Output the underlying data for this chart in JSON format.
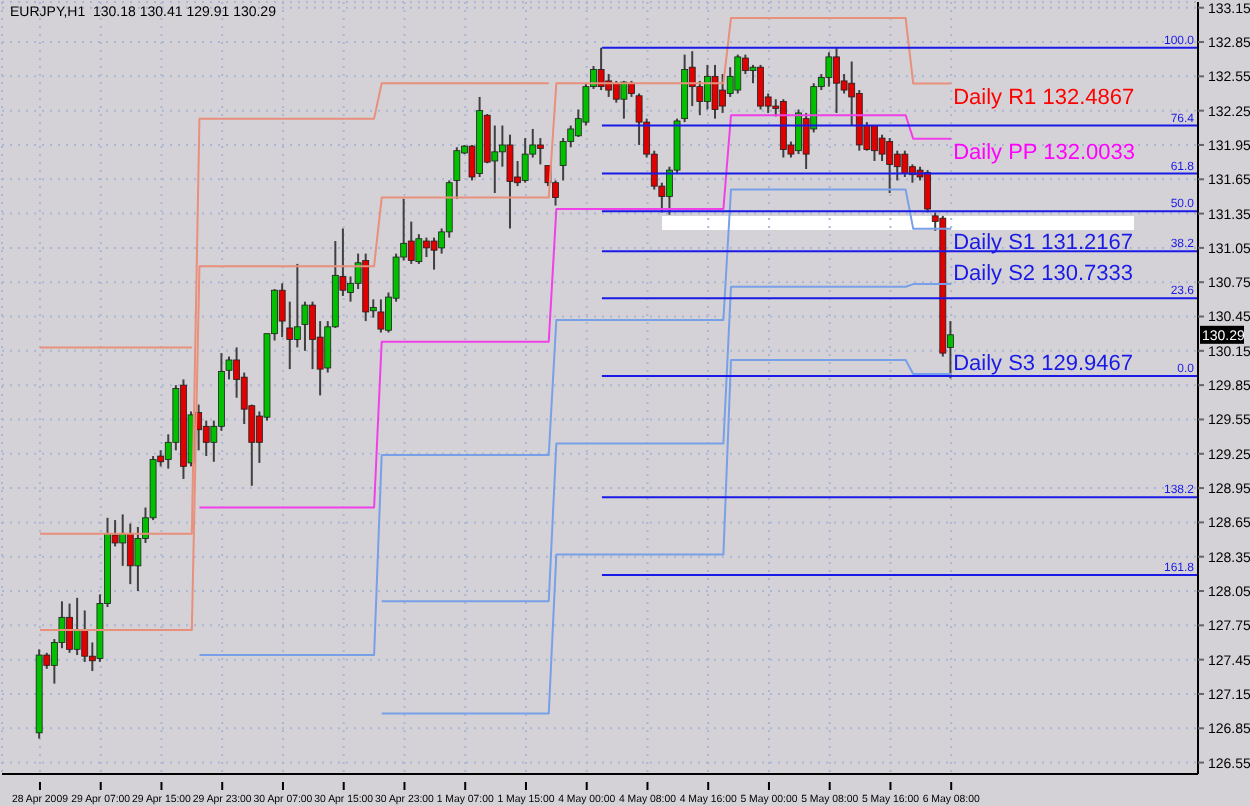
{
  "chart_data": {
    "type": "candlestick",
    "title": "EURJPY,H1  130.18 130.41 129.91 130.29",
    "categories": [
      "28 Apr 2009",
      null,
      null,
      null,
      null,
      null,
      null,
      null,
      "29 Apr 07:00",
      null,
      null,
      null,
      null,
      null,
      null,
      null,
      "29 Apr 15:00",
      null,
      null,
      null,
      null,
      null,
      null,
      null,
      "29 Apr 23:00",
      null,
      null,
      null,
      null,
      null,
      null,
      null,
      "30 Apr 07:00",
      null,
      null,
      null,
      null,
      null,
      null,
      null,
      "30 Apr 15:00",
      null,
      null,
      null,
      null,
      null,
      null,
      null,
      "30 Apr 23:00",
      null,
      null,
      null,
      null,
      null,
      null,
      null,
      "1 May 07:00",
      null,
      null,
      null,
      null,
      null,
      null,
      null,
      "1 May 15:00",
      null,
      null,
      null,
      null,
      null,
      null,
      null,
      "4 May 00:00",
      null,
      null,
      null,
      null,
      null,
      null,
      null,
      "4 May 08:00",
      null,
      null,
      null,
      null,
      null,
      null,
      null,
      "4 May 16:00",
      null,
      null,
      null,
      null,
      null,
      null,
      null,
      "5 May 00:00",
      null,
      null,
      null,
      null,
      null,
      null,
      null,
      "5 May 08:00",
      null,
      null,
      null,
      null,
      null,
      null,
      null,
      "5 May 16:00",
      null,
      null,
      null,
      null,
      null,
      null,
      null,
      "6 May 08:00"
    ],
    "ohlc": [
      [
        126.81,
        127.54,
        126.76,
        127.49
      ],
      [
        127.49,
        127.51,
        127.37,
        127.4
      ],
      [
        127.4,
        127.63,
        127.24,
        127.6
      ],
      [
        127.6,
        127.96,
        127.55,
        127.82
      ],
      [
        127.82,
        127.94,
        127.51,
        127.54
      ],
      [
        127.54,
        127.99,
        127.49,
        127.71
      ],
      [
        127.71,
        127.88,
        127.43,
        127.48
      ],
      [
        127.48,
        127.6,
        127.35,
        127.44
      ],
      [
        127.46,
        128.02,
        127.43,
        127.94
      ],
      [
        127.94,
        128.69,
        127.91,
        128.55
      ],
      [
        128.54,
        128.67,
        128.44,
        128.47
      ],
      [
        128.47,
        128.72,
        128.27,
        128.55
      ],
      [
        128.55,
        128.64,
        128.11,
        128.27
      ],
      [
        128.27,
        128.61,
        128.05,
        128.51
      ],
      [
        128.51,
        128.78,
        128.47,
        128.69
      ],
      [
        128.69,
        129.23,
        128.67,
        129.2
      ],
      [
        129.23,
        129.28,
        129.14,
        129.18
      ],
      [
        129.2,
        129.42,
        129.12,
        129.35
      ],
      [
        129.35,
        129.85,
        129.28,
        129.82
      ],
      [
        129.85,
        129.9,
        129.03,
        129.14
      ],
      [
        129.17,
        129.62,
        129.14,
        129.59
      ],
      [
        129.61,
        129.68,
        129.28,
        129.46
      ],
      [
        129.49,
        129.54,
        129.23,
        129.35
      ],
      [
        129.35,
        129.54,
        129.18,
        129.49
      ],
      [
        129.49,
        130.13,
        129.45,
        129.97
      ],
      [
        129.98,
        130.1,
        129.9,
        130.07
      ],
      [
        130.07,
        130.18,
        129.74,
        129.9
      ],
      [
        129.92,
        129.96,
        129.51,
        129.64
      ],
      [
        129.67,
        129.68,
        128.97,
        129.35
      ],
      [
        129.58,
        129.62,
        129.17,
        129.35
      ],
      [
        129.57,
        130.3,
        129.54,
        130.3
      ],
      [
        130.3,
        130.69,
        130.24,
        130.68
      ],
      [
        130.68,
        130.74,
        130.27,
        130.41
      ],
      [
        130.35,
        130.58,
        129.99,
        130.25
      ],
      [
        130.25,
        130.91,
        130.18,
        130.36
      ],
      [
        130.38,
        130.58,
        130.15,
        130.55
      ],
      [
        130.55,
        130.58,
        129.99,
        130.25
      ],
      [
        130.27,
        130.41,
        129.76,
        129.99
      ],
      [
        130.0,
        130.41,
        129.96,
        130.36
      ],
      [
        130.36,
        131.11,
        130.35,
        130.81
      ],
      [
        130.8,
        131.22,
        130.63,
        130.68
      ],
      [
        130.66,
        130.8,
        130.58,
        130.74
      ],
      [
        130.74,
        131.0,
        130.69,
        130.92
      ],
      [
        130.94,
        131.0,
        130.41,
        130.49
      ],
      [
        130.5,
        130.6,
        130.44,
        130.53
      ],
      [
        130.49,
        130.6,
        130.31,
        130.34
      ],
      [
        130.33,
        130.66,
        130.31,
        130.62
      ],
      [
        130.61,
        131.0,
        130.58,
        130.97
      ],
      [
        130.97,
        131.48,
        130.94,
        131.09
      ],
      [
        131.11,
        131.28,
        130.91,
        130.94
      ],
      [
        130.93,
        131.17,
        130.91,
        131.13
      ],
      [
        131.11,
        131.14,
        130.97,
        131.05
      ],
      [
        131.11,
        131.14,
        130.86,
        131.03
      ],
      [
        131.05,
        131.22,
        131.0,
        131.19
      ],
      [
        131.19,
        131.64,
        131.14,
        131.62
      ],
      [
        131.64,
        131.93,
        131.48,
        131.9
      ],
      [
        131.88,
        131.95,
        131.87,
        131.94
      ],
      [
        131.94,
        131.95,
        131.64,
        131.67
      ],
      [
        131.7,
        132.37,
        131.67,
        132.25
      ],
      [
        132.21,
        132.22,
        131.79,
        131.8
      ],
      [
        131.81,
        132.12,
        131.53,
        131.89
      ],
      [
        131.89,
        132.12,
        131.76,
        131.95
      ],
      [
        131.95,
        132.04,
        131.22,
        131.63
      ],
      [
        131.67,
        131.81,
        131.59,
        131.62
      ],
      [
        131.64,
        132.01,
        131.62,
        131.87
      ],
      [
        131.87,
        132.09,
        131.84,
        131.95
      ],
      [
        131.95,
        132.01,
        131.78,
        131.92
      ],
      [
        131.77,
        131.77,
        131.59,
        131.62
      ],
      [
        131.62,
        131.64,
        131.42,
        131.49
      ],
      [
        131.77,
        132.01,
        131.64,
        131.98
      ],
      [
        131.98,
        132.12,
        131.93,
        132.09
      ],
      [
        132.03,
        132.26,
        132.02,
        132.18
      ],
      [
        132.15,
        132.49,
        132.12,
        132.46
      ],
      [
        132.46,
        132.64,
        132.44,
        132.61
      ],
      [
        132.61,
        132.8,
        132.43,
        132.46
      ],
      [
        132.51,
        132.57,
        132.37,
        132.43
      ],
      [
        132.49,
        132.51,
        132.32,
        132.35
      ],
      [
        132.35,
        132.51,
        132.18,
        132.5
      ],
      [
        132.49,
        132.51,
        132.37,
        132.4
      ],
      [
        132.38,
        132.4,
        131.95,
        132.15
      ],
      [
        132.15,
        132.18,
        131.84,
        131.87
      ],
      [
        131.87,
        131.9,
        131.56,
        131.59
      ],
      [
        131.59,
        131.62,
        131.36,
        131.5
      ],
      [
        131.5,
        131.76,
        131.34,
        131.73
      ],
      [
        131.73,
        132.18,
        131.7,
        132.16
      ],
      [
        132.18,
        132.74,
        132.15,
        132.61
      ],
      [
        132.63,
        132.77,
        132.29,
        132.46
      ],
      [
        132.46,
        132.51,
        132.21,
        132.33
      ],
      [
        132.33,
        132.65,
        132.26,
        132.55
      ],
      [
        132.55,
        132.65,
        132.18,
        132.26
      ],
      [
        132.43,
        132.57,
        132.23,
        132.29
      ],
      [
        132.4,
        132.63,
        132.37,
        132.55
      ],
      [
        132.43,
        132.74,
        132.4,
        132.72
      ],
      [
        132.71,
        132.74,
        132.57,
        132.6
      ],
      [
        132.6,
        132.65,
        132.49,
        132.63
      ],
      [
        132.63,
        132.65,
        132.26,
        132.29
      ],
      [
        132.37,
        132.4,
        132.23,
        132.29
      ],
      [
        132.29,
        132.35,
        132.2,
        132.27
      ],
      [
        132.33,
        132.35,
        131.84,
        131.91
      ],
      [
        131.95,
        131.98,
        131.84,
        131.87
      ],
      [
        131.9,
        132.26,
        131.87,
        132.23
      ],
      [
        132.18,
        132.23,
        131.74,
        131.87
      ],
      [
        132.09,
        132.49,
        132.06,
        132.46
      ],
      [
        132.46,
        132.57,
        132.43,
        132.54
      ],
      [
        132.54,
        132.76,
        132.46,
        132.72
      ],
      [
        132.72,
        132.8,
        132.23,
        132.49
      ],
      [
        132.51,
        132.57,
        132.4,
        132.43
      ],
      [
        132.49,
        132.68,
        132.12,
        132.37
      ],
      [
        132.4,
        132.43,
        131.9,
        131.95
      ],
      [
        132.12,
        132.15,
        131.9,
        131.91
      ],
      [
        132.12,
        132.12,
        131.81,
        131.9
      ],
      [
        132.01,
        132.04,
        131.81,
        131.87
      ],
      [
        131.98,
        132.01,
        131.53,
        131.78
      ],
      [
        131.87,
        131.9,
        131.64,
        131.76
      ],
      [
        131.87,
        131.9,
        131.67,
        131.7
      ],
      [
        131.76,
        131.78,
        131.62,
        131.69
      ],
      [
        131.73,
        131.76,
        131.64,
        131.67
      ],
      [
        131.71,
        131.73,
        131.36,
        131.39
      ],
      [
        131.33,
        131.36,
        131.2,
        131.28
      ],
      [
        131.31,
        131.33,
        130.1,
        130.13
      ],
      [
        130.18,
        130.41,
        129.91,
        130.29
      ]
    ],
    "series": [
      {
        "type": "line",
        "color": "#e8907c",
        "values": [
          127.71,
          127.71,
          127.71,
          127.71,
          127.71,
          127.71,
          127.71,
          127.71,
          127.71,
          127.71,
          127.71,
          127.71,
          127.71,
          127.71,
          127.71,
          127.71,
          127.71,
          127.71,
          127.71,
          127.71,
          127.71,
          130.89,
          130.89,
          130.89,
          130.89,
          130.89,
          130.89,
          130.89,
          130.89,
          130.89,
          130.89,
          130.89,
          130.89,
          130.89,
          130.89,
          130.89,
          130.89,
          130.89,
          130.89,
          130.89,
          130.89,
          130.89,
          130.89,
          130.89,
          130.89,
          131.49,
          131.49,
          131.49,
          131.49,
          131.49,
          131.49,
          131.49,
          131.49,
          131.49,
          131.49,
          131.49,
          131.49,
          131.49,
          131.49,
          131.49,
          131.49,
          131.49,
          131.49,
          131.49,
          131.49,
          131.49,
          131.49,
          131.49,
          132.49,
          132.49,
          132.49,
          132.49,
          132.49,
          132.49,
          132.49,
          132.49,
          132.49,
          132.49,
          132.49,
          132.49,
          132.49,
          132.49,
          132.49,
          132.49,
          132.49,
          132.49,
          132.49,
          132.49,
          132.49,
          132.49,
          132.49,
          133.06,
          133.06,
          133.06,
          133.06,
          133.06,
          133.06,
          133.06,
          133.06,
          133.06,
          133.06,
          133.06,
          133.06,
          133.06,
          133.06,
          133.06,
          133.06,
          133.06,
          133.06,
          133.06,
          133.06,
          133.06,
          133.06,
          133.06,
          133.06,
          132.4867,
          132.4867,
          132.4867,
          132.4867,
          132.4867,
          132.4867
        ]
      },
      {
        "type": "line",
        "color": "#e8907c",
        "values": [
          128.55,
          128.55,
          128.55,
          128.55,
          128.55,
          128.55,
          128.55,
          128.55,
          128.55,
          128.55,
          128.55,
          128.55,
          128.55,
          128.55,
          128.55,
          128.55,
          128.55,
          128.55,
          128.55,
          128.55,
          128.55,
          132.18,
          132.18,
          132.18,
          132.18,
          132.18,
          132.18,
          132.18,
          132.18,
          132.18,
          132.18,
          132.18,
          132.18,
          132.18,
          132.18,
          132.18,
          132.18,
          132.18,
          132.18,
          132.18,
          132.18,
          132.18,
          132.18,
          132.18,
          132.18,
          132.49,
          132.49,
          132.49,
          132.49,
          132.49,
          132.49,
          132.49,
          132.49,
          132.49,
          132.49,
          132.49,
          132.49,
          132.49,
          132.49,
          132.49,
          132.49,
          132.49,
          132.49,
          132.49,
          132.49,
          132.49,
          132.49,
          132.49,
          null,
          null,
          null,
          null,
          null,
          null,
          null,
          null,
          null,
          null,
          null,
          null,
          null,
          null,
          null,
          null,
          null,
          null,
          null,
          null,
          null,
          null,
          null,
          null,
          null,
          null,
          null,
          null,
          null,
          null,
          null,
          null,
          null,
          null,
          null,
          null,
          null,
          null,
          null,
          null,
          null,
          null,
          null,
          null,
          null,
          null,
          null,
          null,
          null,
          null,
          null,
          null,
          null
        ]
      },
      {
        "type": "line",
        "color": "#e8907c",
        "values": [
          130.18,
          130.18,
          130.18,
          130.18,
          130.18,
          130.18,
          130.18,
          130.18,
          130.18,
          130.18,
          130.18,
          130.18,
          130.18,
          130.18,
          130.18,
          130.18,
          130.18,
          130.18,
          130.18,
          130.18,
          130.18,
          null,
          null,
          null,
          null,
          null,
          null,
          null,
          null,
          null,
          null,
          null,
          null,
          null,
          null,
          null,
          null,
          null,
          null,
          null,
          null,
          null,
          null,
          null,
          null,
          null,
          null,
          null,
          null,
          null,
          null,
          null,
          null,
          null,
          null,
          null,
          null,
          null,
          null,
          null,
          null,
          null,
          null,
          null,
          null,
          null,
          null,
          null,
          null,
          null,
          null,
          null,
          null,
          null,
          null,
          null,
          null,
          null,
          null,
          null,
          null,
          null,
          null,
          null,
          null,
          null,
          null,
          null,
          null,
          null,
          null,
          null,
          null,
          null,
          null,
          null,
          null,
          null,
          null,
          null,
          null,
          null,
          null,
          null,
          null,
          null,
          null,
          null,
          null,
          null,
          null,
          null,
          null,
          null,
          null,
          null,
          null,
          null,
          null,
          null,
          null
        ]
      },
      {
        "type": "line",
        "color": "#f040e8",
        "values": [
          null,
          null,
          null,
          null,
          null,
          null,
          null,
          null,
          null,
          null,
          null,
          null,
          null,
          null,
          null,
          null,
          null,
          null,
          null,
          null,
          null,
          128.78,
          128.78,
          128.78,
          128.78,
          128.78,
          128.78,
          128.78,
          128.78,
          128.78,
          128.78,
          128.78,
          128.78,
          128.78,
          128.78,
          128.78,
          128.78,
          128.78,
          128.78,
          128.78,
          128.78,
          128.78,
          128.78,
          128.78,
          128.78,
          130.23,
          130.23,
          130.23,
          130.23,
          130.23,
          130.23,
          130.23,
          130.23,
          130.23,
          130.23,
          130.23,
          130.23,
          130.23,
          130.23,
          130.23,
          130.23,
          130.23,
          130.23,
          130.23,
          130.23,
          130.23,
          130.23,
          130.23,
          131.39,
          131.39,
          131.39,
          131.39,
          131.39,
          131.39,
          131.39,
          131.39,
          131.39,
          131.39,
          131.39,
          131.39,
          131.39,
          131.39,
          131.39,
          131.39,
          131.39,
          131.39,
          131.39,
          131.39,
          131.39,
          131.39,
          131.39,
          132.21,
          132.21,
          132.21,
          132.21,
          132.21,
          132.21,
          132.21,
          132.21,
          132.21,
          132.21,
          132.21,
          132.21,
          132.21,
          132.21,
          132.21,
          132.21,
          132.21,
          132.21,
          132.21,
          132.21,
          132.21,
          132.21,
          132.21,
          132.21,
          132.0033,
          132.0033,
          132.0033,
          132.0033,
          132.0033,
          132.0033
        ]
      },
      {
        "type": "line",
        "color": "#78a0e8",
        "values": [
          null,
          null,
          null,
          null,
          null,
          null,
          null,
          null,
          null,
          null,
          null,
          null,
          null,
          null,
          null,
          null,
          null,
          null,
          null,
          null,
          null,
          127.49,
          127.49,
          127.49,
          127.49,
          127.49,
          127.49,
          127.49,
          127.49,
          127.49,
          127.49,
          127.49,
          127.49,
          127.49,
          127.49,
          127.49,
          127.49,
          127.49,
          127.49,
          127.49,
          127.49,
          127.49,
          127.49,
          127.49,
          127.49,
          129.24,
          129.24,
          129.24,
          129.24,
          129.24,
          129.24,
          129.24,
          129.24,
          129.24,
          129.24,
          129.24,
          129.24,
          129.24,
          129.24,
          129.24,
          129.24,
          129.24,
          129.24,
          129.24,
          129.24,
          129.24,
          129.24,
          129.24,
          130.42,
          130.42,
          130.42,
          130.42,
          130.42,
          130.42,
          130.42,
          130.42,
          130.42,
          130.42,
          130.42,
          130.42,
          130.42,
          130.42,
          130.42,
          130.42,
          130.42,
          130.42,
          130.42,
          130.42,
          130.42,
          130.42,
          130.42,
          131.56,
          131.56,
          131.56,
          131.56,
          131.56,
          131.56,
          131.56,
          131.56,
          131.56,
          131.56,
          131.56,
          131.56,
          131.56,
          131.56,
          131.56,
          131.56,
          131.56,
          131.56,
          131.56,
          131.56,
          131.56,
          131.56,
          131.56,
          131.56,
          131.2167,
          131.2167,
          131.2167,
          131.2167,
          131.2167,
          131.2167
        ]
      },
      {
        "type": "line",
        "color": "#78a0e8",
        "values": [
          null,
          null,
          null,
          null,
          null,
          null,
          null,
          null,
          null,
          null,
          null,
          null,
          null,
          null,
          null,
          null,
          null,
          null,
          null,
          null,
          null,
          null,
          null,
          null,
          null,
          null,
          null,
          null,
          null,
          null,
          null,
          null,
          null,
          null,
          null,
          null,
          null,
          null,
          null,
          null,
          null,
          null,
          null,
          null,
          null,
          127.96,
          127.96,
          127.96,
          127.96,
          127.96,
          127.96,
          127.96,
          127.96,
          127.96,
          127.96,
          127.96,
          127.96,
          127.96,
          127.96,
          127.96,
          127.96,
          127.96,
          127.96,
          127.96,
          127.96,
          127.96,
          127.96,
          127.96,
          129.34,
          129.34,
          129.34,
          129.34,
          129.34,
          129.34,
          129.34,
          129.34,
          129.34,
          129.34,
          129.34,
          129.34,
          129.34,
          129.34,
          129.34,
          129.34,
          129.34,
          129.34,
          129.34,
          129.34,
          129.34,
          129.34,
          129.34,
          130.71,
          130.71,
          130.71,
          130.71,
          130.71,
          130.71,
          130.71,
          130.71,
          130.71,
          130.71,
          130.71,
          130.71,
          130.71,
          130.71,
          130.71,
          130.71,
          130.71,
          130.71,
          130.71,
          130.71,
          130.71,
          130.71,
          130.71,
          130.71,
          130.7333,
          130.7333,
          130.7333,
          130.7333,
          130.7333,
          130.7333
        ]
      },
      {
        "type": "line",
        "color": "#78a0e8",
        "values": [
          null,
          null,
          null,
          null,
          null,
          null,
          null,
          null,
          null,
          null,
          null,
          null,
          null,
          null,
          null,
          null,
          null,
          null,
          null,
          null,
          null,
          null,
          null,
          null,
          null,
          null,
          null,
          null,
          null,
          null,
          null,
          null,
          null,
          null,
          null,
          null,
          null,
          null,
          null,
          null,
          null,
          null,
          null,
          null,
          null,
          126.98,
          126.98,
          126.98,
          126.98,
          126.98,
          126.98,
          126.98,
          126.98,
          126.98,
          126.98,
          126.98,
          126.98,
          126.98,
          126.98,
          126.98,
          126.98,
          126.98,
          126.98,
          126.98,
          126.98,
          126.98,
          126.98,
          126.98,
          128.37,
          128.37,
          128.37,
          128.37,
          128.37,
          128.37,
          128.37,
          128.37,
          128.37,
          128.37,
          128.37,
          128.37,
          128.37,
          128.37,
          128.37,
          128.37,
          128.37,
          128.37,
          128.37,
          128.37,
          128.37,
          128.37,
          128.37,
          130.07,
          130.07,
          130.07,
          130.07,
          130.07,
          130.07,
          130.07,
          130.07,
          130.07,
          130.07,
          130.07,
          130.07,
          130.07,
          130.07,
          130.07,
          130.07,
          130.07,
          130.07,
          130.07,
          130.07,
          130.07,
          130.07,
          130.07,
          130.07,
          129.9467,
          129.9467,
          129.9467,
          129.9467,
          129.9467,
          129.9467
        ]
      }
    ],
    "ylim": [
      126.45,
      133.2
    ],
    "yticks": [
      133.15,
      132.85,
      132.55,
      132.25,
      131.95,
      131.65,
      131.35,
      131.05,
      130.75,
      130.45,
      130.15,
      129.85,
      129.55,
      129.25,
      128.95,
      128.65,
      128.35,
      128.05,
      127.75,
      127.45,
      127.15,
      126.85,
      126.55
    ],
    "grid": true,
    "ref_lines": [
      {
        "axis": "y",
        "value": 132.8,
        "color": "#1a1ae6"
      },
      {
        "axis": "y",
        "value": 132.12,
        "color": "#1a1ae6"
      },
      {
        "axis": "y",
        "value": 131.7,
        "color": "#1a1ae6"
      },
      {
        "axis": "y",
        "value": 131.37,
        "color": "#1a1ae6"
      },
      {
        "axis": "y",
        "value": 131.02,
        "color": "#1a1ae6"
      },
      {
        "axis": "y",
        "value": 130.61,
        "color": "#1a1ae6"
      },
      {
        "axis": "y",
        "value": 129.93,
        "color": "#1a1ae6"
      },
      {
        "axis": "y",
        "value": 128.87,
        "color": "#1a1ae6"
      },
      {
        "axis": "y",
        "value": 128.19,
        "color": "#1a1ae6"
      }
    ],
    "annotations": [
      {
        "text": "Daily R1 132.4867",
        "x": "6 May 08:00",
        "y": 132.4867
      },
      {
        "text": "Daily PP 132.0033",
        "x": "6 May 08:00",
        "y": 132.0033
      },
      {
        "text": "Daily S1 131.2167",
        "x": "6 May 08:00",
        "y": 131.2167
      },
      {
        "text": "Daily S2 130.7333",
        "x": "6 May 08:00",
        "y": 130.7333
      },
      {
        "text": "Daily S3 129.9467",
        "x": "6 May 08:00",
        "y": 129.9467
      },
      "130.29",
      {
        "text": "100.0",
        "y": 132.8
      },
      {
        "text": "76.4",
        "y": 132.12
      },
      {
        "text": "61.8",
        "y": 131.7
      },
      {
        "text": "50.0",
        "y": 131.37
      },
      {
        "text": "38.2",
        "y": 131.02
      },
      {
        "text": "23.6",
        "y": 130.61
      },
      {
        "text": "0.0",
        "y": 129.93
      },
      {
        "text": "138.2",
        "y": 128.87
      },
      {
        "text": "161.8",
        "y": 128.19
      }
    ]
  }
}
